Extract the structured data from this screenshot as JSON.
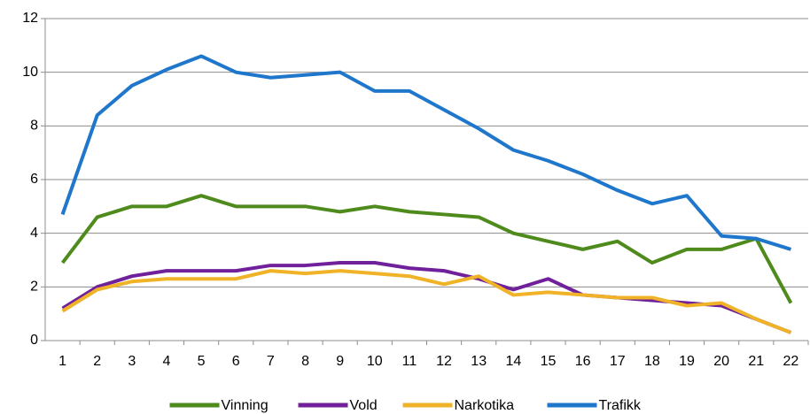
{
  "chart_data": {
    "type": "line",
    "categories": [
      "1",
      "2",
      "3",
      "4",
      "5",
      "6",
      "7",
      "8",
      "9",
      "10",
      "11",
      "12",
      "13",
      "14",
      "15",
      "16",
      "17",
      "18",
      "19",
      "20",
      "21",
      "22"
    ],
    "series": [
      {
        "name": "Vinning",
        "color": "#4e8a1c",
        "values": [
          2.9,
          4.6,
          5.0,
          5.0,
          5.4,
          5.0,
          5.0,
          5.0,
          4.8,
          5.0,
          4.8,
          4.7,
          4.6,
          4.0,
          3.7,
          3.4,
          3.7,
          2.9,
          3.4,
          3.4,
          3.8,
          1.4
        ]
      },
      {
        "name": "Vold",
        "color": "#70209a",
        "values": [
          1.2,
          2.0,
          2.4,
          2.6,
          2.6,
          2.6,
          2.8,
          2.8,
          2.9,
          2.9,
          2.7,
          2.6,
          2.3,
          1.9,
          2.3,
          1.7,
          1.6,
          1.5,
          1.4,
          1.3,
          0.8,
          0.3
        ]
      },
      {
        "name": "Narkotika",
        "color": "#f0b226",
        "values": [
          1.1,
          1.9,
          2.2,
          2.3,
          2.3,
          2.3,
          2.6,
          2.5,
          2.6,
          2.5,
          2.4,
          2.1,
          2.4,
          1.7,
          1.8,
          1.7,
          1.6,
          1.6,
          1.3,
          1.4,
          0.8,
          0.3
        ]
      },
      {
        "name": "Trafikk",
        "color": "#1f77cc",
        "values": [
          4.7,
          8.4,
          9.5,
          10.1,
          10.6,
          10.0,
          9.8,
          9.9,
          10.0,
          9.3,
          9.3,
          8.6,
          7.9,
          7.1,
          6.7,
          6.2,
          5.6,
          5.1,
          5.4,
          3.9,
          3.8,
          3.4
        ]
      }
    ],
    "ylim": [
      0,
      12
    ],
    "yticks": [
      0,
      2,
      4,
      6,
      8,
      10,
      12
    ],
    "grid": true
  }
}
